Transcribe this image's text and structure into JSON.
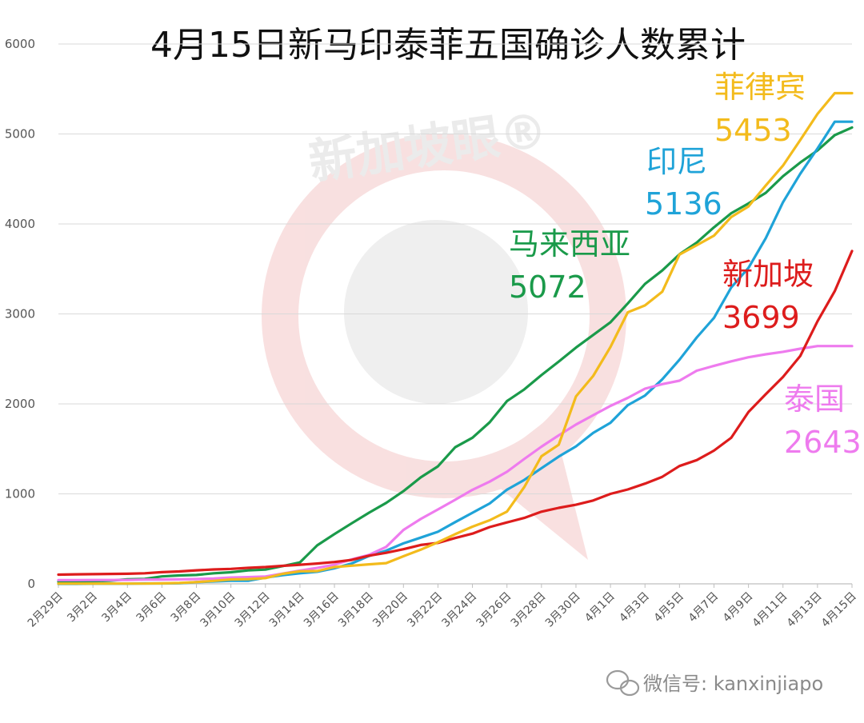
{
  "chart_data": {
    "type": "line",
    "title": "4月15日新马印泰菲五国确诊人数累计",
    "xlabel": "",
    "ylabel": "",
    "ylim": [
      0,
      6000
    ],
    "yticks": [
      0,
      1000,
      2000,
      3000,
      4000,
      5000,
      6000
    ],
    "grid": "horizontal",
    "legend": "inline-labels",
    "x_tick_labels": [
      "2月29日",
      "3月2日",
      "3月4日",
      "3月6日",
      "3月8日",
      "3月10日",
      "3月12日",
      "3月14日",
      "3月16日",
      "3月18日",
      "3月20日",
      "3月22日",
      "3月24日",
      "3月26日",
      "3月28日",
      "3月30日",
      "4月1日",
      "4月3日",
      "4月5日",
      "4月7日",
      "4月9日",
      "4月11日",
      "4月13日",
      "4月15日"
    ],
    "x_start_date": "2020-02-29",
    "x_days": 47,
    "series": [
      {
        "name": "马来西亚",
        "label_value": "5072",
        "color": "#1a9a4a",
        "values": [
          25,
          25,
          29,
          36,
          50,
          55,
          83,
          93,
          99,
          117,
          129,
          149,
          158,
          197,
          238,
          428,
          553,
          673,
          790,
          900,
          1030,
          1183,
          1306,
          1518,
          1624,
          1796,
          2031,
          2161,
          2320,
          2470,
          2626,
          2766,
          2908,
          3116,
          3333,
          3483,
          3662,
          3793,
          3963,
          4119,
          4228,
          4346,
          4530,
          4683,
          4817,
          4987,
          5072
        ]
      },
      {
        "name": "印尼",
        "label_value": "5136",
        "color": "#1fa3d8",
        "values": [
          0,
          0,
          2,
          2,
          2,
          4,
          4,
          6,
          19,
          27,
          34,
          34,
          69,
          96,
          117,
          134,
          172,
          227,
          309,
          369,
          450,
          514,
          579,
          686,
          790,
          893,
          1046,
          1155,
          1285,
          1414,
          1528,
          1677,
          1790,
          1986,
          2092,
          2273,
          2491,
          2738,
          2956,
          3293,
          3512,
          3842,
          4241,
          4557,
          4839,
          5136,
          5136
        ]
      },
      {
        "name": "泰国",
        "label_value": "2643",
        "color": "#ee7bee",
        "values": [
          42,
          42,
          43,
          43,
          43,
          47,
          48,
          50,
          53,
          59,
          70,
          75,
          82,
          114,
          147,
          177,
          212,
          272,
          322,
          411,
          599,
          721,
          827,
          934,
          1045,
          1136,
          1245,
          1388,
          1524,
          1651,
          1771,
          1875,
          1978,
          2067,
          2169,
          2220,
          2258,
          2369,
          2423,
          2473,
          2518,
          2551,
          2579,
          2613,
          2643,
          2643,
          2643
        ]
      },
      {
        "name": "新加坡",
        "label_value": "3699",
        "color": "#dd1c1c",
        "values": [
          102,
          106,
          108,
          110,
          112,
          117,
          130,
          138,
          150,
          160,
          166,
          178,
          187,
          200,
          212,
          226,
          243,
          266,
          313,
          345,
          385,
          432,
          455,
          509,
          558,
          631,
          683,
          732,
          802,
          844,
          879,
          926,
          1000,
          1049,
          1114,
          1189,
          1309,
          1375,
          1481,
          1623,
          1910,
          2108,
          2299,
          2532,
          2918,
          3252,
          3699
        ]
      },
      {
        "name": "菲律宾",
        "label_value": "5453",
        "color": "#f3bb1c",
        "values": [
          3,
          3,
          3,
          3,
          3,
          3,
          5,
          10,
          20,
          33,
          49,
          52,
          64,
          111,
          140,
          142,
          187,
          202,
          217,
          230,
          307,
          380,
          462,
          552,
          636,
          707,
          803,
          1075,
          1418,
          1546,
          2084,
          2311,
          2633,
          3018,
          3094,
          3246,
          3660,
          3764,
          3870,
          4076,
          4195,
          4428,
          4648,
          4932,
          5223,
          5453,
          5453
        ]
      }
    ]
  },
  "watermark": {
    "text": "新加坡眼®"
  },
  "footer": {
    "wechat_text": "微信号: kanxinjiapo",
    "icon": "wechat-icon"
  },
  "colors": {
    "grid": "#d9d9d9",
    "axis": "#bfbfbf",
    "watermark": "#f2b8b8"
  }
}
